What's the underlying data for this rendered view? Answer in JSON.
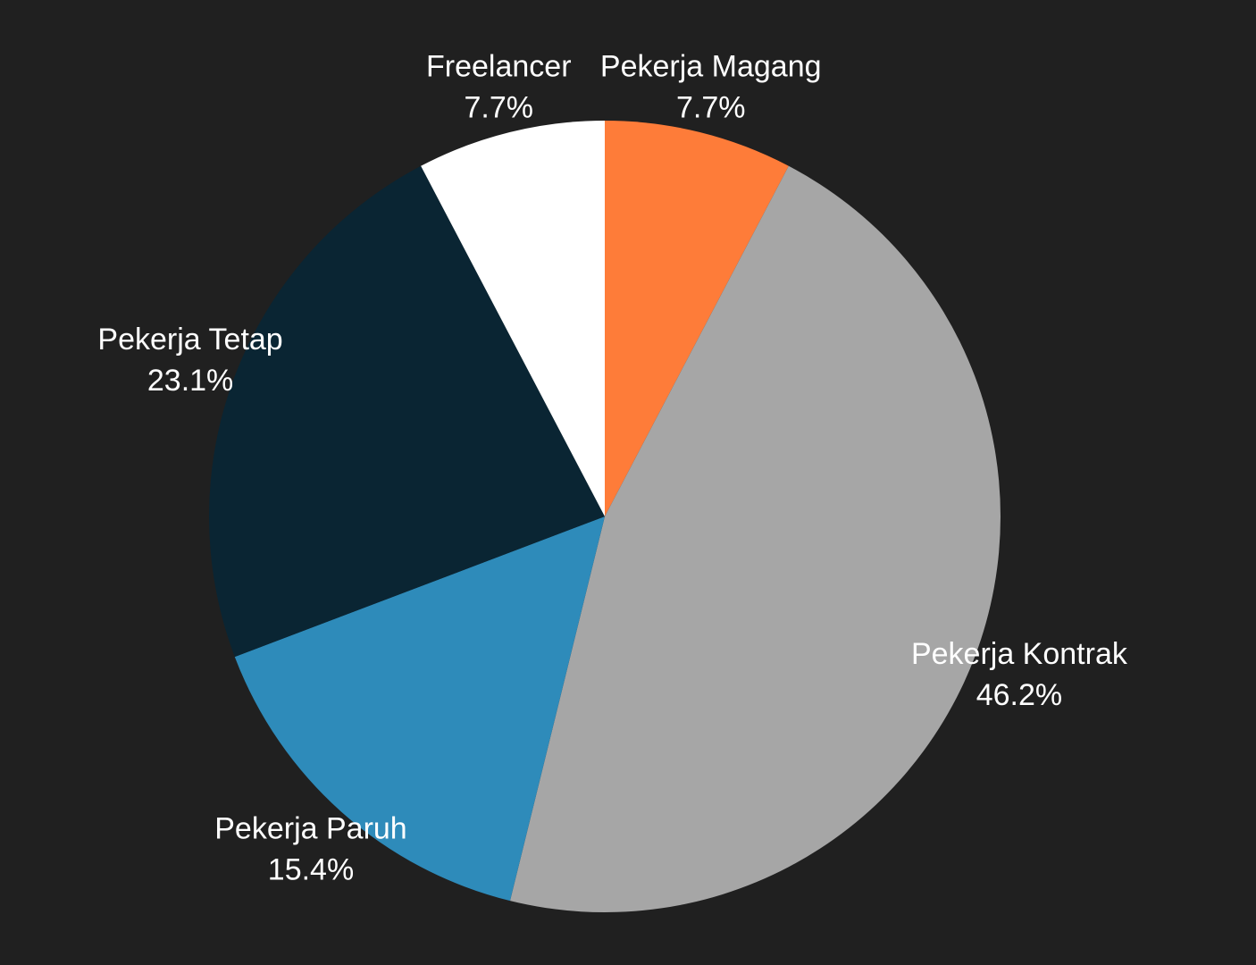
{
  "chart_data": {
    "type": "pie",
    "background": "#202020",
    "start_angle_deg": 90,
    "direction": "clockwise",
    "slices": [
      {
        "label": "Pekerja Magang",
        "value": 7.7,
        "percent_text": "7.7%",
        "color": "#fe7c39"
      },
      {
        "label": "Pekerja Kontrak",
        "value": 46.2,
        "percent_text": "46.2%",
        "color": "#a6a6a6"
      },
      {
        "label": "Pekerja Paruh",
        "value": 15.4,
        "percent_text": "15.4%",
        "color": "#2e8bba"
      },
      {
        "label": "Pekerja Tetap",
        "value": 23.1,
        "percent_text": "23.1%",
        "color": "#0a2533"
      },
      {
        "label": "Freelancer",
        "value": 7.7,
        "percent_text": "7.7%",
        "color": "#ffffff"
      }
    ]
  }
}
